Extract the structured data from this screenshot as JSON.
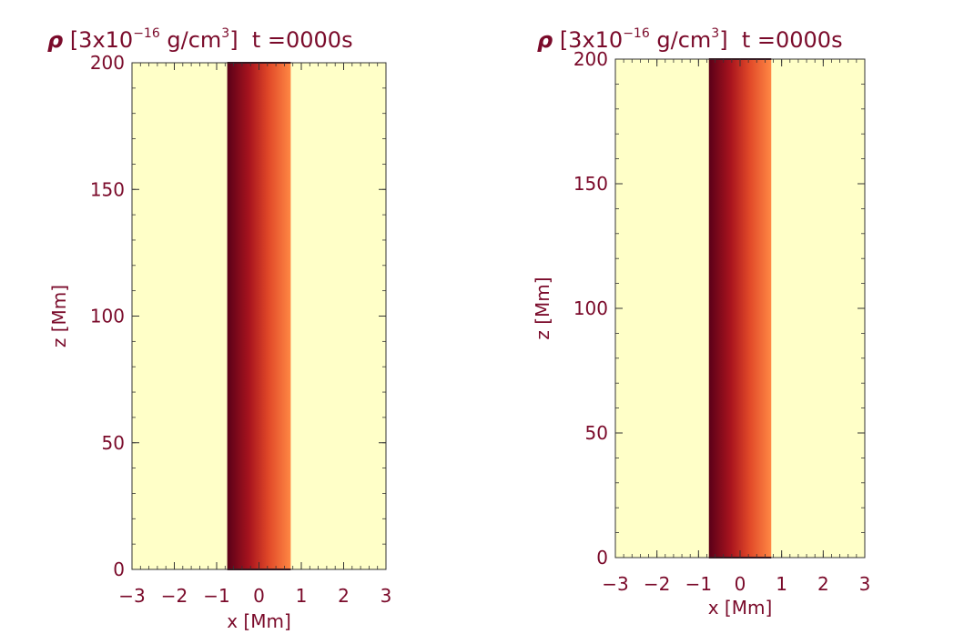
{
  "colors": {
    "text": "#7a0a2a",
    "background_field": "#ffffc8",
    "tube_dark": "#5a0018",
    "tube_mid": "#c8281e",
    "tube_light": "#ff8040",
    "axis": "#333333"
  },
  "chart_data": [
    {
      "type": "heatmap",
      "title_parts": {
        "rho": "ρ",
        "unit_prefix": "[3x10",
        "exponent": "−16",
        "unit_mid": " g/cm",
        "unit_exp": "3",
        "unit_close": "]",
        "time": "t =0000s"
      },
      "xlabel": "x [Mm]",
      "ylabel": "z [Mm]",
      "xlim": [
        -3,
        3
      ],
      "ylim": [
        0,
        200
      ],
      "x_ticks": [
        -3,
        -2,
        -1,
        0,
        1,
        2,
        3
      ],
      "y_ticks": [
        0,
        50,
        100,
        150,
        200
      ],
      "tube_x_range": [
        -0.75,
        0.75
      ],
      "background_level": "low",
      "tube_level": "high, decreasing toward +x"
    },
    {
      "type": "heatmap",
      "title_parts": {
        "rho": "ρ",
        "unit_prefix": "[3x10",
        "exponent": "−16",
        "unit_mid": " g/cm",
        "unit_exp": "3",
        "unit_close": "]",
        "time": "t =0000s"
      },
      "xlabel": "x [Mm]",
      "ylabel": "z [Mm]",
      "xlim": [
        -3,
        3
      ],
      "ylim": [
        0,
        200
      ],
      "x_ticks": [
        -3,
        -2,
        -1,
        0,
        1,
        2,
        3
      ],
      "y_ticks": [
        0,
        50,
        100,
        150,
        200
      ],
      "tube_x_range": [
        -0.75,
        0.75
      ],
      "background_level": "low",
      "tube_level": "high, decreasing toward +x"
    }
  ]
}
